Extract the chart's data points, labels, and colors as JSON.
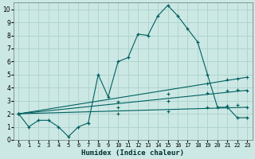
{
  "bg_color": "#cce8e4",
  "grid_color": "#afd4ce",
  "line_color": "#006060",
  "xlabel": "Humidex (Indice chaleur)",
  "xlim": [
    0,
    23
  ],
  "ylim": [
    0,
    10.5
  ],
  "xticks": [
    0,
    1,
    2,
    3,
    4,
    5,
    6,
    7,
    8,
    9,
    10,
    11,
    12,
    13,
    14,
    15,
    16,
    17,
    18,
    19,
    20,
    21,
    22,
    23
  ],
  "yticks": [
    0,
    1,
    2,
    3,
    4,
    5,
    6,
    7,
    8,
    9,
    10
  ],
  "line1_x": [
    0,
    1,
    2,
    3,
    4,
    5,
    6,
    7,
    8,
    9,
    10,
    11,
    12,
    13,
    14,
    15,
    16,
    17,
    18,
    19,
    20,
    21,
    22,
    23
  ],
  "line1_y": [
    2.0,
    1.0,
    1.5,
    1.5,
    1.0,
    0.25,
    1.0,
    1.3,
    5.0,
    3.3,
    6.0,
    6.3,
    8.1,
    8.0,
    9.5,
    10.3,
    9.5,
    8.5,
    7.5,
    5.0,
    2.5,
    2.5,
    1.7,
    1.7
  ],
  "line2_x": [
    0,
    23
  ],
  "line2_y": [
    2.0,
    4.8
  ],
  "line3_x": [
    0,
    23
  ],
  "line3_y": [
    2.0,
    3.8
  ],
  "line4_x": [
    0,
    23
  ],
  "line4_y": [
    2.0,
    2.5
  ],
  "marker2_x": [
    0,
    10,
    15,
    19,
    21,
    22,
    23
  ],
  "marker2_y": [
    2.0,
    2.9,
    3.5,
    4.3,
    4.6,
    4.7,
    4.8
  ],
  "marker3_x": [
    0,
    10,
    15,
    19,
    21,
    22,
    23
  ],
  "marker3_y": [
    2.0,
    2.5,
    3.0,
    3.6,
    3.8,
    3.85,
    3.8
  ],
  "marker4_x": [
    0,
    10,
    15,
    19,
    21,
    22,
    23
  ],
  "marker4_y": [
    2.0,
    2.0,
    2.2,
    2.5,
    2.6,
    2.7,
    2.5
  ]
}
